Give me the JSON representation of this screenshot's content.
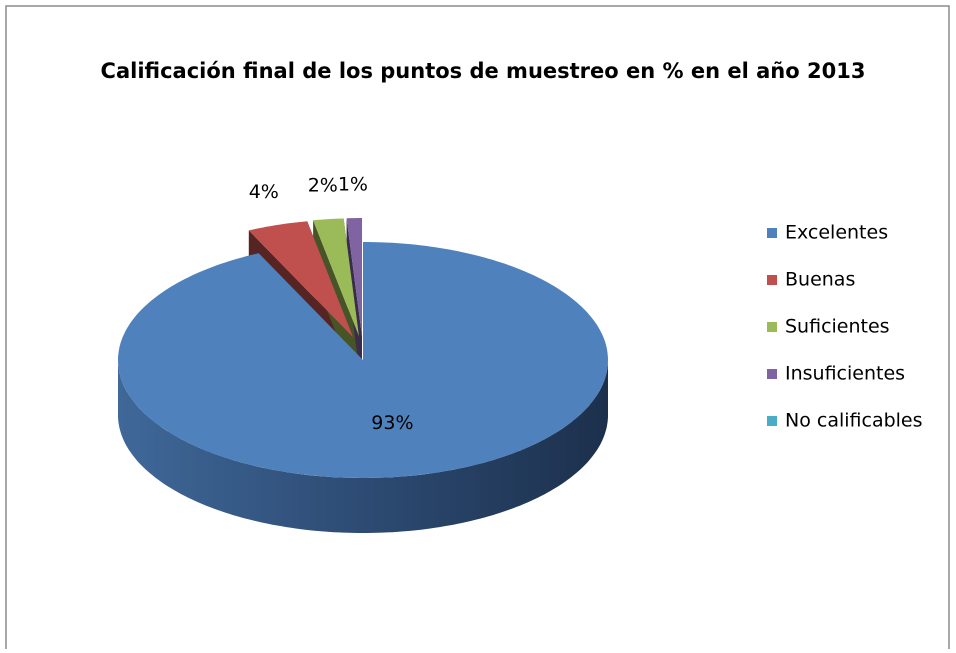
{
  "chart_data": {
    "type": "pie3d",
    "title": "Calificación final de los puntos de muestreo en % en el año 2013",
    "categories": [
      "Excelentes",
      "Buenas",
      "Suficientes",
      "Insuficientes",
      "No calificables"
    ],
    "values": [
      93,
      4,
      2,
      1,
      0
    ],
    "value_labels": [
      "93%",
      "4%",
      "2%",
      "1%",
      null
    ],
    "colors": [
      "#4f81bd",
      "#c0504d",
      "#9bbb59",
      "#8064a2",
      "#4bacc6"
    ],
    "legend": "right"
  }
}
